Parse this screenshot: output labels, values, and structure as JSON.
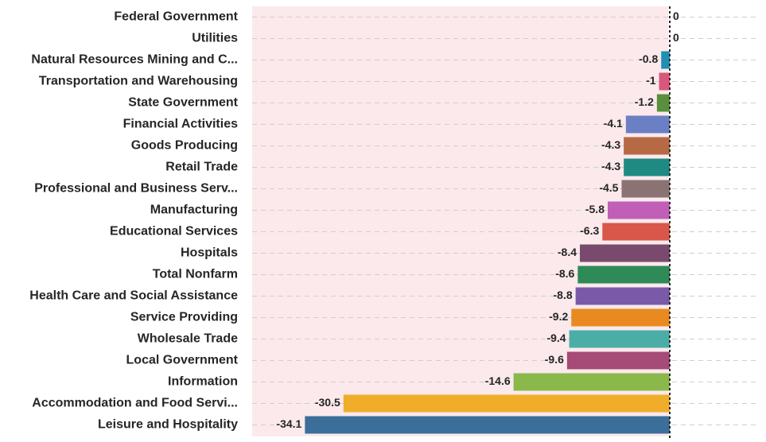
{
  "chart_data": {
    "type": "bar",
    "orientation": "horizontal",
    "categories": [
      "Federal Government",
      "Utilities",
      "Natural Resources Mining and C...",
      "Transportation and Warehousing",
      "State Government",
      "Financial Activities",
      "Goods Producing",
      "Retail Trade",
      "Professional and Business Serv...",
      "Manufacturing",
      "Educational Services",
      "Hospitals",
      "Total Nonfarm",
      "Health Care and Social Assistance",
      "Service Providing",
      "Wholesale Trade",
      "Local Government",
      "Information",
      "Accommodation and Food Servi...",
      "Leisure and Hospitality"
    ],
    "values": [
      0,
      0,
      -0.8,
      -1,
      -1.2,
      -4.1,
      -4.3,
      -4.3,
      -4.5,
      -5.8,
      -6.3,
      -8.4,
      -8.6,
      -8.8,
      -9.2,
      -9.4,
      -9.6,
      -14.6,
      -30.5,
      -34.1
    ],
    "value_labels": [
      "0",
      "0",
      "-0.8",
      "-1",
      "-1.2",
      "-4.1",
      "-4.3",
      "-4.3",
      "-4.5",
      "-5.8",
      "-6.3",
      "-8.4",
      "-8.6",
      "-8.8",
      "-9.2",
      "-9.4",
      "-9.6",
      "-14.6",
      "-30.5",
      "-34.1"
    ],
    "colors": [
      "#1f8fb3",
      "#1f8fb3",
      "#1f8fb3",
      "#d9577a",
      "#5a8f3c",
      "#6b7fc4",
      "#b56a45",
      "#1f8a82",
      "#8a7372",
      "#c15fb8",
      "#d9574a",
      "#7a4a6e",
      "#2e8a56",
      "#7a5aa8",
      "#e88a1f",
      "#4aaea6",
      "#a64a78",
      "#8ab84a",
      "#f0ad2a",
      "#3b6f99"
    ],
    "xlim": [
      -40,
      0
    ],
    "grid": true,
    "legend": "none"
  }
}
